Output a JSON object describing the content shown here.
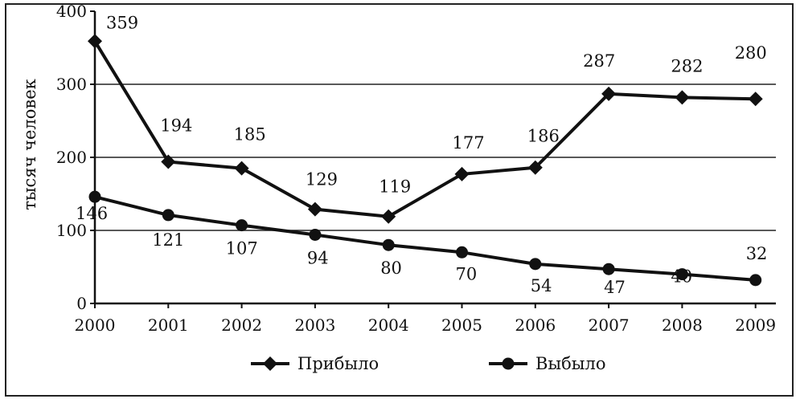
{
  "chart_data": {
    "type": "line",
    "title": "",
    "xlabel": "",
    "ylabel": "тысяч человек",
    "x": [
      "2000",
      "2001",
      "2002",
      "2003",
      "2004",
      "2005",
      "2006",
      "2007",
      "2008",
      "2009"
    ],
    "ylim": [
      0,
      400
    ],
    "yticks": [
      "0",
      "100",
      "200",
      "300",
      "400"
    ],
    "grid": "horizontal",
    "legend": "bottom",
    "series": [
      {
        "name": "Прибыло",
        "marker": "diamond",
        "values": [
          359,
          194,
          185,
          129,
          119,
          177,
          186,
          287,
          282,
          280
        ],
        "labels": [
          "359",
          "194",
          "185",
          "129",
          "119",
          "177",
          "186",
          "287",
          "282",
          "280"
        ]
      },
      {
        "name": "Выбыло",
        "marker": "circle",
        "values": [
          146,
          121,
          107,
          94,
          80,
          70,
          54,
          47,
          40,
          32
        ],
        "labels": [
          "146",
          "121",
          "107",
          "94",
          "80",
          "70",
          "54",
          "47",
          "40",
          "32"
        ]
      }
    ]
  }
}
